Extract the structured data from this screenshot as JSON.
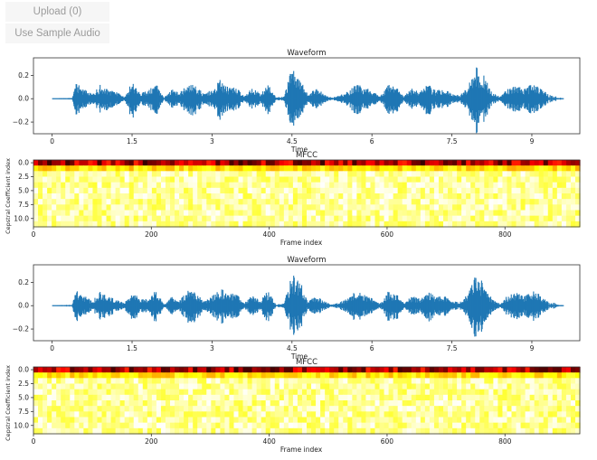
{
  "controls": {
    "upload_label": "Upload (0)",
    "sample_label": "Use Sample Audio"
  },
  "colors": {
    "waveform": "#1f77b4",
    "mfcc_colormap": "hot"
  },
  "chart_data": [
    {
      "type": "line",
      "title": "Waveform",
      "xlabel": "Time",
      "ylabel": "",
      "xlim": [
        -0.35,
        9.9
      ],
      "ylim": [
        -0.3,
        0.35
      ],
      "xticks": [
        0,
        1.5,
        3,
        4.5,
        6,
        7.5,
        9
      ],
      "xtick_labels": [
        "0",
        "1.5",
        "3",
        "4.5",
        "6",
        "7.5",
        "9"
      ],
      "yticks": [
        -0.2,
        0.0,
        0.2
      ],
      "ytick_labels": [
        "−0.2",
        "0.0",
        "0.2"
      ],
      "series": [
        {
          "x": [
            0.0,
            0.38,
            0.45,
            0.6,
            0.75,
            0.9,
            1.05,
            1.2,
            1.35,
            1.5,
            1.65,
            1.8,
            1.95,
            2.1,
            2.25,
            2.4,
            2.55,
            2.7,
            2.85,
            3.0,
            3.15,
            3.3,
            3.45,
            3.6,
            3.75,
            3.9,
            4.05,
            4.2,
            4.35,
            4.5,
            4.65,
            4.8,
            4.95,
            5.1,
            5.25,
            5.4,
            5.55,
            5.7,
            5.85,
            6.0,
            6.15,
            6.3,
            6.45,
            6.6,
            6.75,
            6.9,
            7.05,
            7.2,
            7.35,
            7.5,
            7.65,
            7.8,
            7.95,
            8.1,
            8.25,
            8.4,
            8.55,
            8.7,
            8.85,
            9.0,
            9.15,
            9.3,
            9.6
          ],
          "max": [
            0,
            0.01,
            0.13,
            0.09,
            0.04,
            0.12,
            0.08,
            0.06,
            0.02,
            0.14,
            0.05,
            0.07,
            0.13,
            0.01,
            0.08,
            0.05,
            0.14,
            0.11,
            0.04,
            0.08,
            0.16,
            0.1,
            0.11,
            0.02,
            0.09,
            0.05,
            0.13,
            0.01,
            0.02,
            0.28,
            0.22,
            0.03,
            0.1,
            0.04,
            0.01,
            0.03,
            0.07,
            0.13,
            0.1,
            0.07,
            0.02,
            0.12,
            0.11,
            0.02,
            0.09,
            0.06,
            0.13,
            0.07,
            0.09,
            0.04,
            0.03,
            0.1,
            0.28,
            0.2,
            0.06,
            0.02,
            0.09,
            0.13,
            0.08,
            0.13,
            0.1,
            0.04,
            0
          ],
          "min": [
            0,
            -0.01,
            -0.14,
            -0.09,
            -0.04,
            -0.12,
            -0.1,
            -0.06,
            -0.02,
            -0.18,
            -0.05,
            -0.07,
            -0.15,
            -0.01,
            -0.08,
            -0.05,
            -0.16,
            -0.14,
            -0.04,
            -0.08,
            -0.18,
            -0.1,
            -0.12,
            -0.02,
            -0.09,
            -0.05,
            -0.15,
            -0.01,
            -0.02,
            -0.27,
            -0.22,
            -0.03,
            -0.1,
            -0.04,
            -0.01,
            -0.03,
            -0.07,
            -0.15,
            -0.1,
            -0.07,
            -0.02,
            -0.13,
            -0.14,
            -0.02,
            -0.09,
            -0.06,
            -0.16,
            -0.07,
            -0.1,
            -0.04,
            -0.03,
            -0.1,
            -0.31,
            -0.2,
            -0.06,
            -0.02,
            -0.09,
            -0.14,
            -0.08,
            -0.14,
            -0.1,
            -0.04,
            0
          ]
        }
      ]
    },
    {
      "type": "heatmap",
      "title": "MFCC",
      "xlabel": "Frame index",
      "ylabel": "Cepstral Coefficient index",
      "xlim": [
        0,
        927
      ],
      "ylim": [
        11.5,
        -0.5
      ],
      "xticks": [
        0,
        200,
        400,
        600,
        800
      ],
      "xtick_labels": [
        "0",
        "200",
        "400",
        "600",
        "800"
      ],
      "yticks": [
        0.0,
        2.5,
        5.0,
        7.5,
        10.0
      ],
      "ytick_labels": [
        "0.0",
        "2.5",
        "5.0",
        "7.5",
        "10.0"
      ],
      "rows": 12,
      "cols": 120,
      "colormap": "hot"
    },
    {
      "type": "line",
      "title": "Waveform",
      "xlabel": "Time",
      "ylabel": "",
      "xlim": [
        -0.35,
        9.9
      ],
      "ylim": [
        -0.3,
        0.35
      ],
      "xticks": [
        0,
        1.5,
        3,
        4.5,
        6,
        7.5,
        9
      ],
      "xtick_labels": [
        "0",
        "1.5",
        "3",
        "4.5",
        "6",
        "7.5",
        "9"
      ],
      "yticks": [
        -0.2,
        0.0,
        0.2
      ],
      "ytick_labels": [
        "−0.2",
        "0.0",
        "0.2"
      ],
      "series": [
        {
          "x": [
            0.0,
            0.38,
            0.45,
            0.6,
            0.75,
            0.9,
            1.05,
            1.2,
            1.35,
            1.5,
            1.65,
            1.8,
            1.95,
            2.1,
            2.25,
            2.4,
            2.55,
            2.7,
            2.85,
            3.0,
            3.15,
            3.3,
            3.45,
            3.6,
            3.75,
            3.9,
            4.05,
            4.2,
            4.35,
            4.5,
            4.65,
            4.8,
            4.95,
            5.1,
            5.25,
            5.4,
            5.55,
            5.7,
            5.85,
            6.0,
            6.15,
            6.3,
            6.45,
            6.6,
            6.75,
            6.9,
            7.05,
            7.2,
            7.35,
            7.5,
            7.65,
            7.8,
            7.95,
            8.1,
            8.25,
            8.4,
            8.55,
            8.7,
            8.85,
            9.0,
            9.15,
            9.3,
            9.6
          ],
          "max": [
            0,
            0.01,
            0.13,
            0.09,
            0.04,
            0.12,
            0.08,
            0.06,
            0.02,
            0.14,
            0.05,
            0.07,
            0.13,
            0.01,
            0.08,
            0.05,
            0.14,
            0.11,
            0.04,
            0.08,
            0.16,
            0.1,
            0.11,
            0.02,
            0.09,
            0.05,
            0.13,
            0.01,
            0.02,
            0.28,
            0.22,
            0.03,
            0.1,
            0.04,
            0.01,
            0.03,
            0.07,
            0.13,
            0.1,
            0.07,
            0.02,
            0.12,
            0.11,
            0.02,
            0.09,
            0.06,
            0.13,
            0.07,
            0.09,
            0.04,
            0.03,
            0.1,
            0.28,
            0.2,
            0.06,
            0.02,
            0.09,
            0.13,
            0.08,
            0.13,
            0.1,
            0.04,
            0
          ],
          "min": [
            0,
            -0.01,
            -0.14,
            -0.09,
            -0.04,
            -0.12,
            -0.1,
            -0.06,
            -0.02,
            -0.18,
            -0.05,
            -0.07,
            -0.15,
            -0.01,
            -0.08,
            -0.05,
            -0.16,
            -0.14,
            -0.04,
            -0.08,
            -0.18,
            -0.1,
            -0.12,
            -0.02,
            -0.09,
            -0.05,
            -0.15,
            -0.01,
            -0.02,
            -0.27,
            -0.22,
            -0.03,
            -0.1,
            -0.04,
            -0.01,
            -0.03,
            -0.07,
            -0.15,
            -0.1,
            -0.07,
            -0.02,
            -0.13,
            -0.14,
            -0.02,
            -0.09,
            -0.06,
            -0.16,
            -0.07,
            -0.1,
            -0.04,
            -0.03,
            -0.1,
            -0.31,
            -0.2,
            -0.06,
            -0.02,
            -0.09,
            -0.14,
            -0.08,
            -0.14,
            -0.1,
            -0.04,
            0
          ]
        }
      ]
    },
    {
      "type": "heatmap",
      "title": "MFCC",
      "xlabel": "Frame index",
      "ylabel": "Cepstral Coefficient index",
      "xlim": [
        0,
        927
      ],
      "ylim": [
        11.5,
        -0.5
      ],
      "xticks": [
        0,
        200,
        400,
        600,
        800
      ],
      "xtick_labels": [
        "0",
        "200",
        "400",
        "600",
        "800"
      ],
      "yticks": [
        0.0,
        2.5,
        5.0,
        7.5,
        10.0
      ],
      "ytick_labels": [
        "0.0",
        "2.5",
        "5.0",
        "7.5",
        "10.0"
      ],
      "rows": 12,
      "cols": 120,
      "colormap": "hot"
    }
  ]
}
